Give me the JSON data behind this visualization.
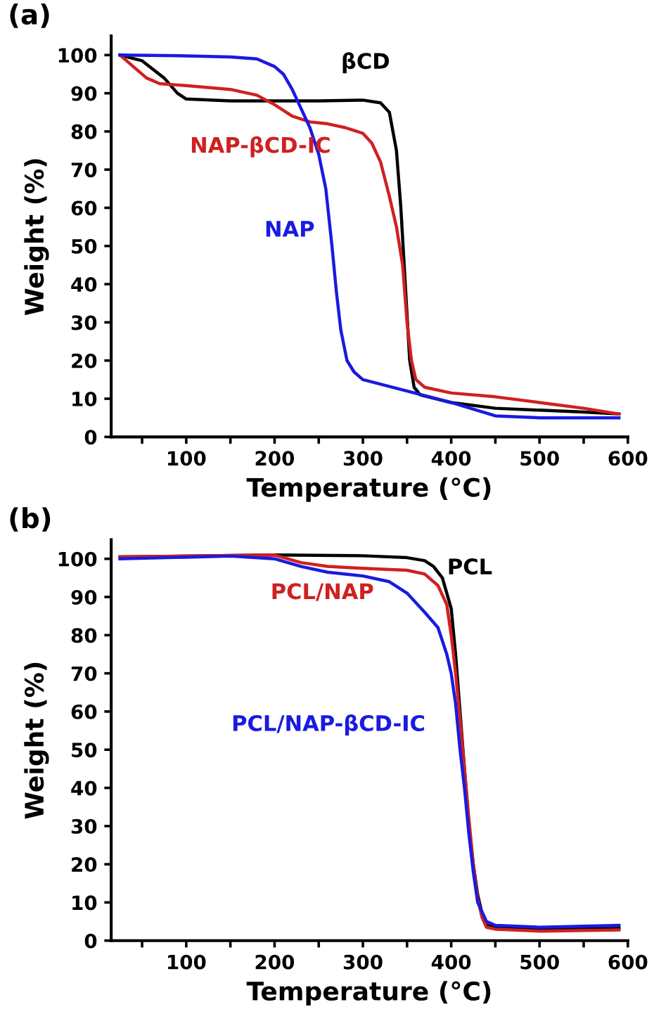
{
  "chart_data": [
    {
      "type": "line",
      "title": "(a)",
      "xlabel": "Temperature (°C)",
      "ylabel": "Weight (%)",
      "xlim": [
        15,
        600
      ],
      "ylim": [
        0,
        105
      ],
      "xticks": [
        {
          "value": 50,
          "label": null
        },
        100,
        {
          "value": 150,
          "label": null
        },
        200,
        {
          "value": 250,
          "label": null
        },
        300,
        {
          "value": 350,
          "label": null
        },
        400,
        {
          "value": 450,
          "label": null
        },
        500,
        {
          "value": 550,
          "label": null
        },
        600
      ],
      "yticks": [
        0,
        10,
        20,
        30,
        40,
        50,
        60,
        70,
        80,
        90,
        100
      ],
      "grid": false,
      "legend": false,
      "series": [
        {
          "name": "βCD",
          "color": "#000000",
          "x": [
            25,
            50,
            75,
            90,
            100,
            150,
            200,
            250,
            300,
            320,
            330,
            338,
            343,
            348,
            353,
            358,
            365,
            400,
            450,
            500,
            550,
            590
          ],
          "values": [
            100,
            98.5,
            94,
            90,
            88.5,
            88,
            88,
            88,
            88.2,
            87.5,
            85,
            75,
            60,
            40,
            20,
            13,
            11,
            9,
            7.5,
            7,
            6.5,
            6
          ]
        },
        {
          "name": "NAP-βCD-IC",
          "color": "#d02020",
          "x": [
            25,
            40,
            55,
            70,
            100,
            150,
            180,
            200,
            220,
            240,
            260,
            280,
            300,
            310,
            320,
            330,
            338,
            345,
            350,
            355,
            360,
            370,
            400,
            450,
            500,
            550,
            590
          ],
          "values": [
            100,
            97,
            94,
            92.5,
            92,
            91,
            89.5,
            87,
            84,
            82.5,
            82,
            81,
            79.5,
            77,
            72,
            63,
            55,
            45,
            30,
            20,
            15,
            13,
            11.5,
            10.5,
            9,
            7.5,
            6
          ]
        },
        {
          "name": "NAP",
          "color": "#1a1ae0",
          "x": [
            25,
            100,
            150,
            180,
            200,
            210,
            220,
            230,
            240,
            250,
            258,
            265,
            270,
            275,
            282,
            290,
            300,
            350,
            400,
            450,
            500,
            550,
            590
          ],
          "values": [
            100,
            99.8,
            99.5,
            99,
            97,
            95,
            91,
            86,
            81,
            74,
            65,
            50,
            38,
            28,
            20,
            17,
            15,
            12,
            9,
            5.5,
            5,
            5,
            5
          ]
        }
      ]
    },
    {
      "type": "line",
      "title": "(b)",
      "xlabel": "Temperature (°C)",
      "ylabel": "Weight (%)",
      "xlim": [
        15,
        600
      ],
      "ylim": [
        0,
        105
      ],
      "xticks": [
        {
          "value": 50,
          "label": null
        },
        100,
        {
          "value": 150,
          "label": null
        },
        200,
        {
          "value": 250,
          "label": null
        },
        300,
        {
          "value": 350,
          "label": null
        },
        400,
        {
          "value": 450,
          "label": null
        },
        500,
        {
          "value": 550,
          "label": null
        },
        600
      ],
      "yticks": [
        0,
        10,
        20,
        30,
        40,
        50,
        60,
        70,
        80,
        90,
        100
      ],
      "grid": false,
      "legend": false,
      "series": [
        {
          "name": "PCL",
          "color": "#000000",
          "x": [
            25,
            200,
            300,
            350,
            370,
            380,
            390,
            400,
            405,
            410,
            415,
            420,
            425,
            430,
            435,
            440,
            450,
            500,
            590
          ],
          "values": [
            100.5,
            101,
            100.8,
            100.3,
            99.5,
            98,
            95,
            87,
            75,
            60,
            45,
            30,
            20,
            12,
            7,
            4,
            3.5,
            3,
            3.2
          ]
        },
        {
          "name": "PCL/NAP",
          "color": "#d02020",
          "x": [
            25,
            200,
            230,
            260,
            300,
            350,
            370,
            385,
            395,
            400,
            405,
            410,
            415,
            420,
            425,
            430,
            435,
            440,
            450,
            500,
            590
          ],
          "values": [
            100.5,
            101,
            99,
            98,
            97.5,
            97,
            96,
            93,
            88,
            80,
            70,
            58,
            45,
            32,
            20,
            11,
            6,
            3.5,
            3,
            2.5,
            2.8
          ]
        },
        {
          "name": "PCL/NAP-βCD-IC",
          "color": "#1a1ae0",
          "x": [
            25,
            150,
            200,
            230,
            260,
            300,
            330,
            350,
            370,
            385,
            395,
            400,
            405,
            410,
            415,
            420,
            425,
            430,
            440,
            450,
            500,
            590
          ],
          "values": [
            100,
            100.7,
            100,
            98,
            96.5,
            95.5,
            94,
            91,
            86,
            82,
            75,
            70,
            62,
            50,
            40,
            28,
            18,
            10,
            5,
            4,
            3.5,
            4
          ]
        }
      ]
    }
  ]
}
